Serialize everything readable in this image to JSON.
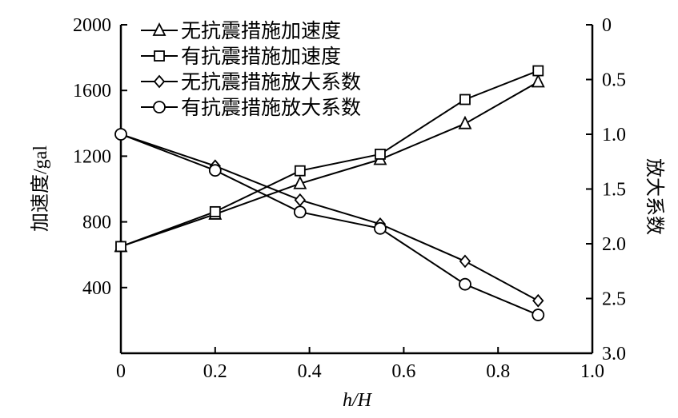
{
  "chart_data": {
    "type": "line",
    "xlabel": "h/H",
    "ylabel": "加速度/gal",
    "y2label": "放大系数",
    "xlim": [
      0,
      1.0
    ],
    "ylim": [
      0,
      2000
    ],
    "y2lim": [
      3.0,
      0
    ],
    "y2_reversed": true,
    "xticks": [
      "0",
      "0.2",
      "0.4",
      "0.6",
      "0.8",
      "1.0"
    ],
    "yticks": [
      "400",
      "800",
      "1200",
      "1600",
      "2000"
    ],
    "y2ticks": [
      "0",
      "0.5",
      "1.0",
      "1.5",
      "2.0",
      "2.5",
      "3.0"
    ],
    "legend_position": "top-left",
    "x": [
      0.0,
      0.2,
      0.38,
      0.55,
      0.73,
      0.885
    ],
    "series": [
      {
        "name": "无抗震措施加速度",
        "axis": "left",
        "marker": "triangle",
        "values": [
          650,
          847,
          1033,
          1180,
          1398,
          1652
        ]
      },
      {
        "name": "有抗震措施加速度",
        "axis": "left",
        "marker": "square",
        "values": [
          650,
          862,
          1111,
          1212,
          1545,
          1720
        ]
      },
      {
        "name": "无抗震措施放大系数",
        "axis": "right",
        "marker": "diamond",
        "values": [
          1.0,
          1.29,
          1.6,
          1.82,
          2.16,
          2.52
        ]
      },
      {
        "name": "有抗震措施放大系数",
        "axis": "right",
        "marker": "circle",
        "values": [
          1.0,
          1.33,
          1.71,
          1.86,
          2.37,
          2.65
        ]
      }
    ]
  }
}
